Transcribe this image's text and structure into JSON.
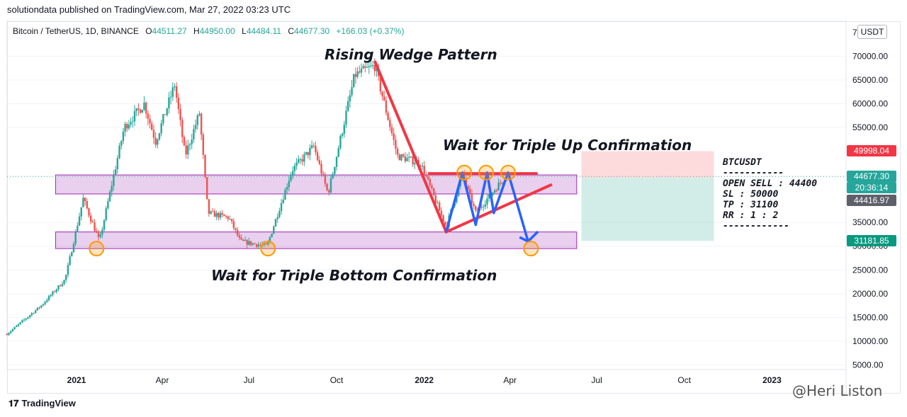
{
  "publisher": "solutiondata published on TradingView.com, Mar 27, 2022 03:23 UTC",
  "legend": {
    "symbol": "Bitcoin / TetherUS, 1D, BINANCE",
    "o_label": "O",
    "o_value": "44511.27",
    "h_label": "H",
    "h_value": "44950.00",
    "l_label": "L",
    "l_value": "44484.11",
    "c_label": "C",
    "c_value": "44677.30",
    "change": "+166.03 (+0.37%)"
  },
  "currency_button": "USDT",
  "annotations": {
    "rising_wedge": "Rising Wedge Pattern",
    "triple_up": "Wait for Triple Up Confirmation",
    "triple_bottom": "Wait for Triple Bottom Confirmation"
  },
  "trade_box": {
    "pair": "BTCUSDT",
    "sep1": "-----------",
    "open": "OPEN SELL : 44400",
    "sl": "SL : 50000",
    "tp": "TP : 31100",
    "rr": "RR : 1 : 2",
    "sep2": "------------"
  },
  "price_tags": {
    "sl": "49998.04",
    "last": "44677.30",
    "countdown": "20:36:14",
    "entry": "44416.97",
    "tp": "31181.85"
  },
  "colors": {
    "up": "#26a69a",
    "down": "#ef5350",
    "zone": "#9c27b0",
    "wedge": "#f23645",
    "zigzag": "#2962ff",
    "target": "#ff9800",
    "sl_tag": "#f23645",
    "last_tag": "#26a69a",
    "entry_tag": "#5d606b"
  },
  "footer": {
    "logo": "TradingView",
    "watermark": "@Heri Liston"
  },
  "chart_data": {
    "type": "candlestick",
    "x_ticks": [
      "2021",
      "Apr",
      "Jul",
      "Oct",
      "2022",
      "Apr",
      "Jul",
      "Oct",
      "2023"
    ],
    "y_ticks": [
      "70000.00",
      "65000.00",
      "60000.00",
      "55000.00",
      "35000.00",
      "30000.00",
      "25000.00",
      "20000.00",
      "15000.00",
      "10000.00",
      "5000.00"
    ],
    "y_top_partial": "7",
    "price_path": [
      {
        "date": "2020-10-20",
        "price": 11500
      },
      {
        "date": "2020-11-25",
        "price": 17500
      },
      {
        "date": "2020-12-20",
        "price": 23000
      },
      {
        "date": "2021-01-08",
        "price": 40000
      },
      {
        "date": "2021-01-25",
        "price": 31000
      },
      {
        "date": "2021-02-20",
        "price": 55000
      },
      {
        "date": "2021-03-13",
        "price": 60000
      },
      {
        "date": "2021-03-25",
        "price": 52000
      },
      {
        "date": "2021-04-14",
        "price": 64000
      },
      {
        "date": "2021-04-25",
        "price": 49000
      },
      {
        "date": "2021-05-10",
        "price": 58000
      },
      {
        "date": "2021-05-19",
        "price": 37000
      },
      {
        "date": "2021-06-10",
        "price": 36000
      },
      {
        "date": "2021-06-22",
        "price": 31000
      },
      {
        "date": "2021-07-20",
        "price": 30000
      },
      {
        "date": "2021-08-15",
        "price": 46000
      },
      {
        "date": "2021-09-07",
        "price": 51000
      },
      {
        "date": "2021-09-22",
        "price": 41000
      },
      {
        "date": "2021-10-20",
        "price": 66000
      },
      {
        "date": "2021-11-10",
        "price": 68000
      },
      {
        "date": "2021-12-04",
        "price": 49000
      },
      {
        "date": "2021-12-28",
        "price": 47500
      },
      {
        "date": "2022-01-24",
        "price": 34000
      },
      {
        "date": "2022-02-10",
        "price": 45000
      },
      {
        "date": "2022-02-24",
        "price": 37000
      },
      {
        "date": "2022-03-27",
        "price": 44677
      }
    ],
    "zones": [
      {
        "name": "resistance",
        "from": 41000,
        "to": 45000
      },
      {
        "name": "support",
        "from": 29500,
        "to": 33000
      }
    ],
    "wedge": [
      {
        "date": "2021-11-10",
        "price": 69000
      },
      {
        "date": "2022-01-24",
        "price": 33000
      },
      {
        "date": "2022-05-15",
        "price": 43000
      }
    ],
    "wedge_top": {
      "from_date": "2022-01-05",
      "to_date": "2022-04-30",
      "price": 45300
    },
    "zigzag": [
      {
        "date": "2022-01-24",
        "price": 33000
      },
      {
        "date": "2022-02-10",
        "price": 45500
      },
      {
        "date": "2022-02-24",
        "price": 34500
      },
      {
        "date": "2022-03-08",
        "price": 45500
      },
      {
        "date": "2022-03-15",
        "price": 37000
      },
      {
        "date": "2022-03-30",
        "price": 45500
      },
      {
        "date": "2022-04-20",
        "price": 31000
      }
    ],
    "target_circles": [
      {
        "date": "2021-01-22",
        "price": 29500
      },
      {
        "date": "2021-07-21",
        "price": 29500
      },
      {
        "date": "2022-02-12",
        "price": 45500
      },
      {
        "date": "2022-03-07",
        "price": 45500
      },
      {
        "date": "2022-03-30",
        "price": 45500
      },
      {
        "date": "2022-04-23",
        "price": 29500
      }
    ],
    "position": {
      "side": "short",
      "entry": 44400,
      "stop": 50000,
      "target": 31100,
      "from_date": "2022-06-15",
      "to_date": "2022-11-01"
    }
  }
}
